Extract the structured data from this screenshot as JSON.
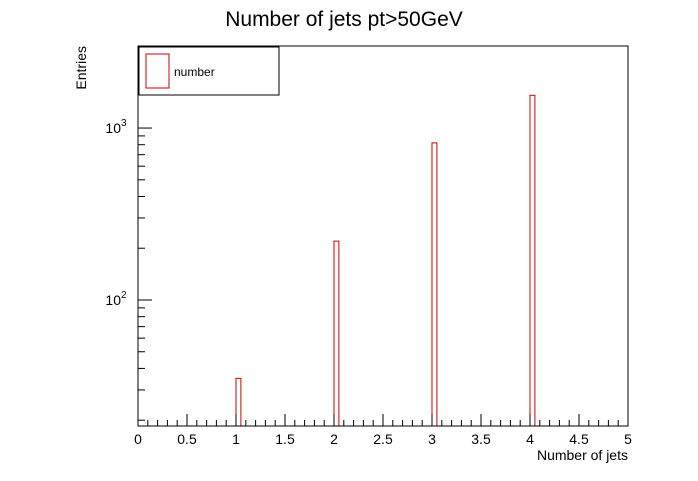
{
  "chart_data": {
    "type": "bar",
    "title": "Number of jets pt>50GeV",
    "xlabel": "Number of jets",
    "ylabel": "Entries",
    "xlim": [
      0,
      5
    ],
    "ylim": [
      18.5,
      3000
    ],
    "y_scale": "log",
    "grid": false,
    "legend_position": "top-left",
    "x_tick_labels": [
      "0",
      "0.5",
      "1",
      "1.5",
      "2",
      "2.5",
      "3",
      "3.5",
      "4",
      "4.5",
      "5"
    ],
    "y_tick_labels": [
      {
        "base": "10",
        "exp": "2",
        "value": 100
      },
      {
        "base": "10",
        "exp": "3",
        "value": 1000
      }
    ],
    "series": [
      {
        "name": "number",
        "color": "#cc0000",
        "bins": [
          {
            "x": 1,
            "value": 35
          },
          {
            "x": 2,
            "value": 220
          },
          {
            "x": 3,
            "value": 820
          },
          {
            "x": 4,
            "value": 1550
          }
        ]
      }
    ]
  }
}
